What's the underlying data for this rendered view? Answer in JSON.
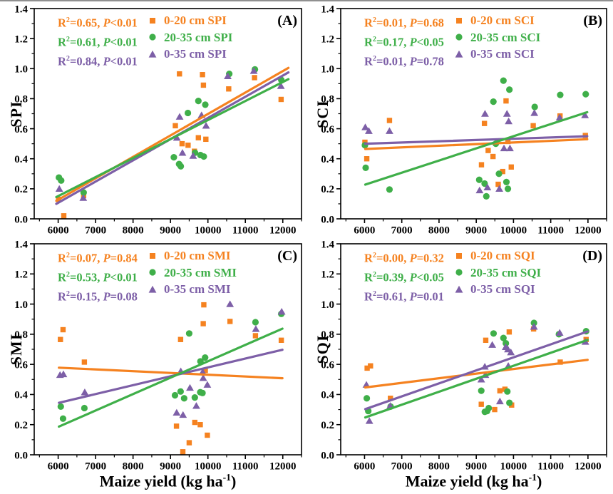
{
  "figure": {
    "xlabel": {
      "pre": "Maize yield (kg ha",
      "sup": "-1",
      "post": ")"
    },
    "colors": {
      "orange": "#F58220",
      "green": "#3FAF49",
      "purple": "#7D5FA7",
      "axis": "#000000"
    }
  },
  "chart_data": [
    {
      "type": "scatter",
      "panel_label": "(A)",
      "ylabel": "SPI",
      "xlim": [
        5360,
        12500
      ],
      "ylim": [
        0,
        1.4
      ],
      "x_ticks": [
        "6000",
        "7000",
        "8000",
        "9000",
        "10000",
        "11000",
        "12000"
      ],
      "y_ticks": [
        "0.0",
        "0.2",
        "0.4",
        "0.6",
        "0.8",
        "1.0",
        "1.2",
        "1.4"
      ],
      "x_minor_step": 500,
      "y_minor_step": 0.1,
      "stats": [
        {
          "pre": "R",
          "sup": "2",
          "mid": "=0.65, ",
          "pvar": "P",
          "post": "<0.01",
          "color": "orange"
        },
        {
          "pre": "R",
          "sup": "2",
          "mid": "=0.61, ",
          "pvar": "P",
          "post": "<0.01",
          "color": "green"
        },
        {
          "pre": "R",
          "sup": "2",
          "mid": "=0.84, ",
          "pvar": "P",
          "post": "<0.01",
          "color": "purple"
        }
      ],
      "series": [
        {
          "name": "0-20 cm SPI",
          "marker": "square",
          "color": "orange",
          "points": [
            [
              6010,
              0.13
            ],
            [
              6150,
              0.02
            ],
            [
              6680,
              0.155
            ],
            [
              9130,
              0.62
            ],
            [
              9240,
              0.965
            ],
            [
              9310,
              0.5
            ],
            [
              9470,
              0.49
            ],
            [
              9640,
              0.45
            ],
            [
              9745,
              0.54
            ],
            [
              9855,
              0.96
            ],
            [
              9880,
              0.89
            ],
            [
              9945,
              0.53
            ],
            [
              10555,
              0.865
            ],
            [
              11245,
              0.94
            ],
            [
              11955,
              0.795
            ]
          ],
          "trend": {
            "x1": 5950,
            "y1": 0.12,
            "x2": 12150,
            "y2": 1.005
          }
        },
        {
          "name": "20-35 cm SPI",
          "marker": "circle",
          "color": "green",
          "points": [
            [
              6020,
              0.275
            ],
            [
              6080,
              0.255
            ],
            [
              6680,
              0.175
            ],
            [
              9090,
              0.41
            ],
            [
              9230,
              0.365
            ],
            [
              9275,
              0.35
            ],
            [
              9465,
              0.705
            ],
            [
              9655,
              0.44
            ],
            [
              9745,
              0.785
            ],
            [
              9800,
              0.425
            ],
            [
              9890,
              0.415
            ],
            [
              9930,
              0.76
            ],
            [
              10570,
              0.965
            ],
            [
              11255,
              0.995
            ],
            [
              11960,
              0.925
            ]
          ],
          "trend": {
            "x1": 5950,
            "y1": 0.145,
            "x2": 12150,
            "y2": 0.93
          }
        },
        {
          "name": "0-35 cm SPI",
          "marker": "triangle",
          "color": "purple",
          "points": [
            [
              6030,
              0.2
            ],
            [
              6670,
              0.14
            ],
            [
              9170,
              0.54
            ],
            [
              9245,
              0.68
            ],
            [
              9320,
              0.44
            ],
            [
              9605,
              0.42
            ],
            [
              9830,
              0.69
            ],
            [
              9950,
              0.62
            ],
            [
              10530,
              0.95
            ],
            [
              11225,
              0.985
            ],
            [
              11950,
              0.885
            ]
          ],
          "trend": {
            "x1": 5950,
            "y1": 0.1,
            "x2": 12150,
            "y2": 0.975
          }
        }
      ]
    },
    {
      "type": "scatter",
      "panel_label": "(B)",
      "ylabel": "SCI",
      "xlim": [
        5360,
        12500
      ],
      "ylim": [
        0,
        1.4
      ],
      "x_ticks": [
        "6000",
        "7000",
        "8000",
        "9000",
        "10000",
        "11000",
        "12000"
      ],
      "y_ticks": [
        "0.0",
        "0.2",
        "0.4",
        "0.6",
        "0.8",
        "1.0",
        "1.2",
        "1.4"
      ],
      "x_minor_step": 500,
      "y_minor_step": 0.1,
      "stats": [
        {
          "pre": "R",
          "sup": "2",
          "mid": "=0.01, ",
          "pvar": "P",
          "post": "=0.68",
          "color": "orange"
        },
        {
          "pre": "R",
          "sup": "2",
          "mid": "=0.17, ",
          "pvar": "P",
          "post": "<0.05",
          "color": "green"
        },
        {
          "pre": "R",
          "sup": "2",
          "mid": "=0.01, ",
          "pvar": "P",
          "post": "=0.78",
          "color": "purple"
        }
      ],
      "series": [
        {
          "name": "0-20 cm SCI",
          "marker": "square",
          "color": "orange",
          "points": [
            [
              6010,
              0.51
            ],
            [
              6060,
              0.4
            ],
            [
              6670,
              0.655
            ],
            [
              9140,
              0.36
            ],
            [
              9220,
              0.635
            ],
            [
              9320,
              0.455
            ],
            [
              9450,
              0.415
            ],
            [
              9590,
              0.23
            ],
            [
              9710,
              0.315
            ],
            [
              9800,
              0.785
            ],
            [
              9850,
              0.515
            ],
            [
              9940,
              0.345
            ],
            [
              10530,
              0.62
            ],
            [
              11250,
              0.685
            ],
            [
              11930,
              0.555
            ]
          ],
          "trend": {
            "x1": 6020,
            "y1": 0.465,
            "x2": 11980,
            "y2": 0.53
          }
        },
        {
          "name": "20-35 cm SCI",
          "marker": "circle",
          "color": "green",
          "points": [
            [
              6010,
              0.49
            ],
            [
              6030,
              0.34
            ],
            [
              6670,
              0.195
            ],
            [
              9080,
              0.26
            ],
            [
              9225,
              0.235
            ],
            [
              9270,
              0.15
            ],
            [
              9460,
              0.78
            ],
            [
              9525,
              0.5
            ],
            [
              9610,
              0.3
            ],
            [
              9730,
              0.92
            ],
            [
              9810,
              0.245
            ],
            [
              9850,
              0.2
            ],
            [
              9890,
              0.86
            ],
            [
              10570,
              0.745
            ],
            [
              11255,
              0.825
            ],
            [
              11940,
              0.83
            ]
          ],
          "trend": {
            "x1": 6020,
            "y1": 0.228,
            "x2": 11980,
            "y2": 0.71
          }
        },
        {
          "name": "0-35 cm SCI",
          "marker": "triangle",
          "color": "purple",
          "points": [
            [
              6020,
              0.61
            ],
            [
              6115,
              0.585
            ],
            [
              6670,
              0.585
            ],
            [
              9090,
              0.19
            ],
            [
              9235,
              0.7
            ],
            [
              9300,
              0.21
            ],
            [
              9620,
              0.2
            ],
            [
              9745,
              0.47
            ],
            [
              9825,
              0.7
            ],
            [
              9870,
              0.65
            ],
            [
              9905,
              0.47
            ],
            [
              10560,
              0.705
            ],
            [
              11240,
              0.675
            ],
            [
              11920,
              0.69
            ]
          ],
          "trend": {
            "x1": 6020,
            "y1": 0.5,
            "x2": 11980,
            "y2": 0.55
          }
        }
      ]
    },
    {
      "type": "scatter",
      "panel_label": "(C)",
      "ylabel": "SMI",
      "xlim": [
        5360,
        12500
      ],
      "ylim": [
        0,
        1.4
      ],
      "x_ticks": [
        "6000",
        "7000",
        "8000",
        "9000",
        "10000",
        "11000",
        "12000"
      ],
      "y_ticks": [
        "0.0",
        "0.2",
        "0.4",
        "0.6",
        "0.8",
        "1.0",
        "1.2",
        "1.4"
      ],
      "x_minor_step": 500,
      "y_minor_step": 0.1,
      "stats": [
        {
          "pre": "R",
          "sup": "2",
          "mid": "=0.07, ",
          "pvar": "P",
          "post": "=0.84",
          "color": "orange"
        },
        {
          "pre": "R",
          "sup": "2",
          "mid": "=0.53, ",
          "pvar": "P",
          "post": "<0.01",
          "color": "green"
        },
        {
          "pre": "R",
          "sup": "2",
          "mid": "=0.15, ",
          "pvar": "P",
          "post": "=0.08",
          "color": "purple"
        }
      ],
      "series": [
        {
          "name": "0-20 cm SMI",
          "marker": "square",
          "color": "orange",
          "points": [
            [
              6060,
              0.765
            ],
            [
              6130,
              0.83
            ],
            [
              6700,
              0.615
            ],
            [
              9160,
              0.19
            ],
            [
              9270,
              0.765
            ],
            [
              9330,
              0.02
            ],
            [
              9500,
              0.08
            ],
            [
              9650,
              0.215
            ],
            [
              9795,
              0.2
            ],
            [
              9875,
              0.87
            ],
            [
              9890,
              0.995
            ],
            [
              9930,
              0.56
            ],
            [
              9985,
              0.13
            ],
            [
              10590,
              0.885
            ],
            [
              11270,
              0.79
            ],
            [
              11960,
              0.76
            ]
          ],
          "trend": {
            "x1": 6020,
            "y1": 0.578,
            "x2": 11990,
            "y2": 0.508
          }
        },
        {
          "name": "20-35 cm SMI",
          "marker": "circle",
          "color": "green",
          "points": [
            [
              6070,
              0.32
            ],
            [
              6130,
              0.24
            ],
            [
              6700,
              0.31
            ],
            [
              9120,
              0.395
            ],
            [
              9270,
              0.42
            ],
            [
              9365,
              0.375
            ],
            [
              9500,
              0.805
            ],
            [
              9650,
              0.38
            ],
            [
              9795,
              0.415
            ],
            [
              9800,
              0.62
            ],
            [
              9855,
              0.41
            ],
            [
              9925,
              0.645
            ],
            [
              11270,
              0.88
            ],
            [
              11960,
              0.935
            ]
          ],
          "trend": {
            "x1": 6020,
            "y1": 0.187,
            "x2": 11990,
            "y2": 0.837
          }
        },
        {
          "name": "0-35 cm SMI",
          "marker": "triangle",
          "color": "purple",
          "points": [
            [
              6050,
              0.53
            ],
            [
              6140,
              0.535
            ],
            [
              6710,
              0.415
            ],
            [
              9165,
              0.28
            ],
            [
              9275,
              0.555
            ],
            [
              9335,
              0.265
            ],
            [
              9520,
              0.445
            ],
            [
              9690,
              0.325
            ],
            [
              9860,
              0.55
            ],
            [
              9875,
              0.51
            ],
            [
              9985,
              0.465
            ],
            [
              10590,
              1.0
            ],
            [
              11280,
              0.835
            ],
            [
              11970,
              0.95
            ]
          ],
          "trend": {
            "x1": 6020,
            "y1": 0.345,
            "x2": 11990,
            "y2": 0.697
          }
        }
      ]
    },
    {
      "type": "scatter",
      "panel_label": "(D)",
      "ylabel": "SQI",
      "xlim": [
        5360,
        12500
      ],
      "ylim": [
        0,
        1.4
      ],
      "x_ticks": [
        "6000",
        "7000",
        "8000",
        "9000",
        "10000",
        "11000",
        "12000"
      ],
      "y_ticks": [
        "0.0",
        "0.2",
        "0.4",
        "0.6",
        "0.8",
        "1.0",
        "1.2",
        "1.4"
      ],
      "x_minor_step": 500,
      "y_minor_step": 0.1,
      "stats": [
        {
          "pre": "R",
          "sup": "2",
          "mid": "=0.00, ",
          "pvar": "P",
          "post": "=0.32",
          "color": "orange"
        },
        {
          "pre": "R",
          "sup": "2",
          "mid": "=0.39, ",
          "pvar": "P",
          "post": "<0.05",
          "color": "green"
        },
        {
          "pre": "R",
          "sup": "2",
          "mid": "=0.61, ",
          "pvar": "P",
          "post": "=0.01",
          "color": "purple"
        }
      ],
      "series": [
        {
          "name": "0-20 cm SQI",
          "marker": "square",
          "color": "orange",
          "points": [
            [
              6070,
              0.575
            ],
            [
              6160,
              0.59
            ],
            [
              6695,
              0.375
            ],
            [
              9135,
              0.335
            ],
            [
              9255,
              0.76
            ],
            [
              9495,
              0.3
            ],
            [
              9635,
              0.425
            ],
            [
              9770,
              0.435
            ],
            [
              9885,
              0.815
            ],
            [
              9950,
              0.33
            ],
            [
              10540,
              0.835
            ],
            [
              11255,
              0.615
            ],
            [
              11950,
              0.765
            ]
          ],
          "trend": {
            "x1": 6020,
            "y1": 0.447,
            "x2": 11990,
            "y2": 0.63
          }
        },
        {
          "name": "20-35 cm SQI",
          "marker": "circle",
          "color": "green",
          "points": [
            [
              6060,
              0.375
            ],
            [
              6100,
              0.29
            ],
            [
              6700,
              0.32
            ],
            [
              9135,
              0.425
            ],
            [
              9230,
              0.285
            ],
            [
              9290,
              0.29
            ],
            [
              9335,
              0.31
            ],
            [
              9465,
              0.805
            ],
            [
              9730,
              0.775
            ],
            [
              9795,
              0.74
            ],
            [
              9835,
              0.42
            ],
            [
              9890,
              0.345
            ],
            [
              10550,
              0.875
            ],
            [
              11220,
              0.8
            ],
            [
              11950,
              0.82
            ]
          ],
          "trend": {
            "x1": 6020,
            "y1": 0.248,
            "x2": 11990,
            "y2": 0.762
          }
        },
        {
          "name": "0-35 cm SQI",
          "marker": "triangle",
          "color": "purple",
          "points": [
            [
              6050,
              0.465
            ],
            [
              6130,
              0.225
            ],
            [
              6690,
              0.325
            ],
            [
              9135,
              0.5
            ],
            [
              9230,
              0.585
            ],
            [
              9245,
              0.53
            ],
            [
              9430,
              0.73
            ],
            [
              9635,
              0.355
            ],
            [
              9790,
              0.715
            ],
            [
              9850,
              0.7
            ],
            [
              9860,
              0.59
            ],
            [
              9930,
              0.68
            ],
            [
              10550,
              0.85
            ],
            [
              11240,
              0.81
            ],
            [
              11930,
              0.75
            ]
          ],
          "trend": {
            "x1": 6020,
            "y1": 0.303,
            "x2": 11990,
            "y2": 0.818
          }
        }
      ]
    }
  ]
}
